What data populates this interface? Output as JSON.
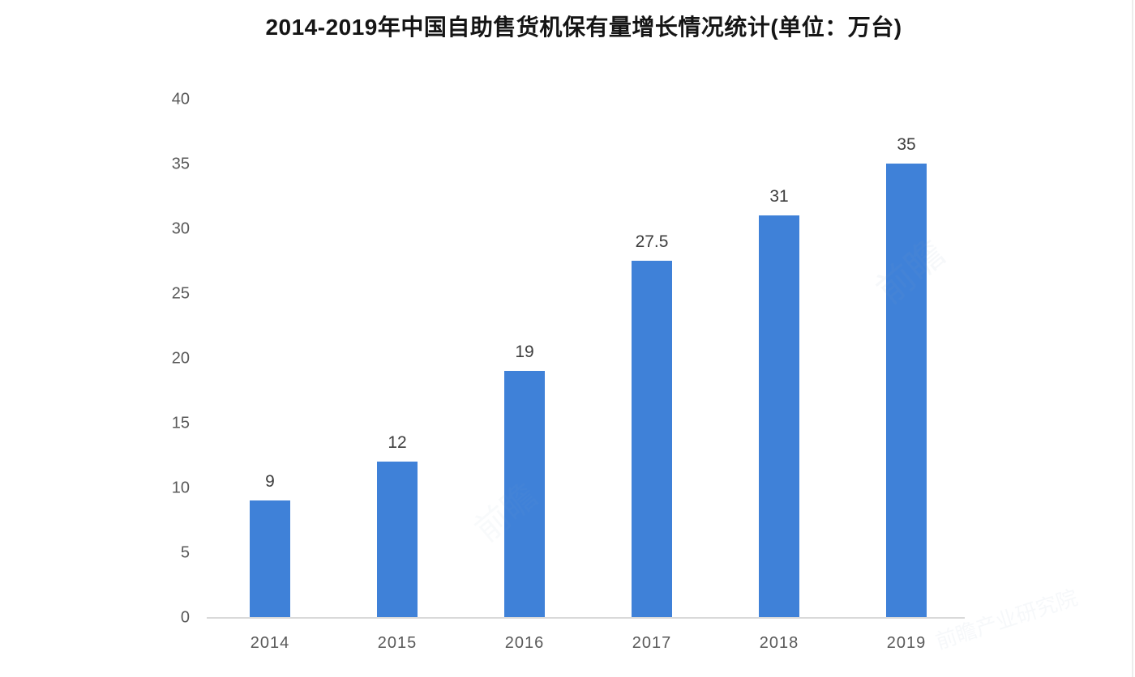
{
  "chart_data": {
    "type": "bar",
    "title": "2014-2019年中国自助售货机保有量增长情况统计(单位：万台)",
    "categories": [
      "2014",
      "2015",
      "2016",
      "2017",
      "2018",
      "2019"
    ],
    "values": [
      9,
      12,
      19,
      27.5,
      31,
      35
    ],
    "value_labels": [
      "9",
      "12",
      "19",
      "27.5",
      "31",
      "35"
    ],
    "series_name": "中国自助售货机保有量",
    "unit": "万台",
    "xlabel": "",
    "ylabel": "",
    "ylim": [
      0,
      40
    ],
    "yticks": [
      0,
      5,
      10,
      15,
      20,
      25,
      30,
      35,
      40
    ],
    "grid": false,
    "legend_position": "none",
    "bar_color": "#3f81d8",
    "axis_line_color": "#d9d9d9",
    "tick_label_color": "#595959",
    "value_label_color": "#3d3d3d",
    "title_color": "#151515"
  },
  "watermark": {
    "small": "前瞻",
    "full": "前瞻产业研究院"
  }
}
